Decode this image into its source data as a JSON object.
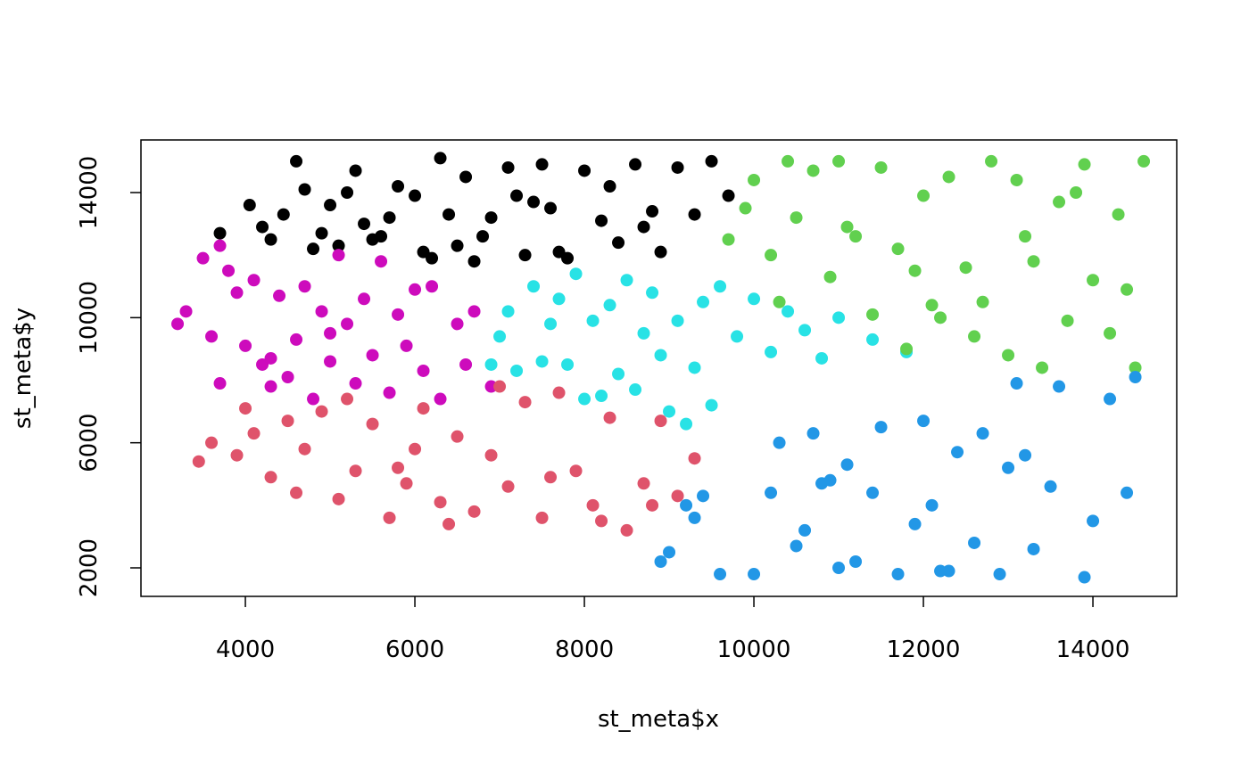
{
  "chart_data": {
    "type": "scatter",
    "xlabel": "st_meta$x",
    "ylabel": "st_meta$y",
    "xlim": [
      2768,
      14989
    ],
    "ylim": [
      1088,
      15682
    ],
    "xticks": [
      4000,
      6000,
      8000,
      10000,
      12000,
      14000
    ],
    "yticks": [
      2000,
      6000,
      10000,
      14000
    ],
    "series": [
      {
        "color": "#000000",
        "x": [
          3700,
          4050,
          4300,
          4450,
          4600,
          4700,
          4900,
          5000,
          5100,
          5300,
          5400,
          5600,
          5800,
          6000,
          6100,
          6300,
          6400,
          6600,
          6700,
          6900,
          7100,
          7300,
          7500,
          7600,
          7800,
          8000,
          8200,
          8400,
          8600,
          8800,
          8900,
          9100,
          9300,
          9500,
          9700,
          4200,
          4800,
          5200,
          5700,
          6200,
          6800,
          7200,
          7700,
          8300,
          8700,
          5500,
          6500,
          7400
        ],
        "y": [
          12700,
          13600,
          12500,
          13300,
          15000,
          14100,
          12700,
          13600,
          12300,
          14700,
          13000,
          12600,
          14200,
          13900,
          12100,
          15100,
          13300,
          14500,
          11800,
          13200,
          14800,
          12000,
          14900,
          13500,
          11900,
          14700,
          13100,
          12400,
          14900,
          13400,
          12100,
          14800,
          13300,
          15000,
          13900,
          12900,
          12200,
          14000,
          13200,
          11900,
          12600,
          13900,
          12100,
          14200,
          12900,
          12500,
          12300,
          13700
        ]
      },
      {
        "color": "#cd0bbc",
        "x": [
          3200,
          3300,
          3500,
          3600,
          3700,
          3800,
          3900,
          4000,
          4100,
          4200,
          4300,
          4400,
          4500,
          4600,
          4700,
          4800,
          4900,
          5000,
          5100,
          5200,
          5300,
          5400,
          5500,
          5600,
          5700,
          5800,
          5900,
          6000,
          6100,
          6200,
          6300,
          6500,
          6600,
          6700,
          6900,
          3700,
          4300,
          5000
        ],
        "y": [
          9800,
          10200,
          11900,
          9400,
          7900,
          11500,
          10800,
          9100,
          11200,
          8500,
          7800,
          10700,
          8100,
          9300,
          11000,
          7400,
          10200,
          8600,
          12000,
          9800,
          7900,
          10600,
          8800,
          11800,
          7600,
          10100,
          9100,
          10900,
          8300,
          11000,
          7400,
          9800,
          8500,
          10200,
          7800,
          12300,
          8700,
          9500
        ]
      },
      {
        "color": "#df536b",
        "x": [
          3450,
          3600,
          3900,
          4100,
          4300,
          4500,
          4700,
          4900,
          5100,
          5300,
          5500,
          5700,
          5900,
          6100,
          6300,
          6500,
          6700,
          6900,
          7100,
          7300,
          7500,
          7700,
          7900,
          8100,
          8300,
          8500,
          8700,
          8900,
          9100,
          9300,
          4000,
          4600,
          5200,
          5800,
          6400,
          7000,
          7600,
          8200,
          8800,
          6000
        ],
        "y": [
          5400,
          6000,
          5600,
          6300,
          4900,
          6700,
          5800,
          7000,
          4200,
          5100,
          6600,
          3600,
          4700,
          7100,
          4100,
          6200,
          3800,
          5600,
          4600,
          7300,
          3600,
          7600,
          5100,
          4000,
          6800,
          3200,
          4700,
          6700,
          4300,
          5500,
          7100,
          4400,
          7400,
          5200,
          3400,
          7800,
          4900,
          3500,
          4000,
          5800
        ]
      },
      {
        "color": "#28e2e5",
        "x": [
          6900,
          7000,
          7100,
          7200,
          7400,
          7500,
          7600,
          7700,
          7800,
          7900,
          8000,
          8100,
          8200,
          8300,
          8400,
          8500,
          8600,
          8700,
          8800,
          8900,
          9000,
          9100,
          9200,
          9300,
          9400,
          9500,
          9600,
          9800,
          10000,
          10200,
          10400,
          10600,
          10800,
          11000,
          11400,
          11800
        ],
        "y": [
          8500,
          9400,
          10200,
          8300,
          11000,
          8600,
          9800,
          10600,
          8500,
          11400,
          7400,
          9900,
          7500,
          10400,
          8200,
          11200,
          7700,
          9500,
          10800,
          8800,
          7000,
          9900,
          6600,
          8400,
          10500,
          7200,
          11000,
          9400,
          10600,
          8900,
          10200,
          9600,
          8700,
          10000,
          9300,
          8900
        ]
      },
      {
        "color": "#61d04f",
        "x": [
          9700,
          9900,
          10000,
          10200,
          10400,
          10500,
          10700,
          10900,
          11000,
          11200,
          11400,
          11500,
          11700,
          11800,
          12000,
          12200,
          12300,
          12500,
          12700,
          12800,
          13000,
          13100,
          13300,
          13400,
          13600,
          13700,
          13900,
          14000,
          14200,
          14300,
          14500,
          14600,
          10300,
          11100,
          11900,
          12600,
          13200,
          13800,
          14400,
          12100
        ],
        "y": [
          12500,
          13500,
          14400,
          12000,
          15000,
          13200,
          14700,
          11300,
          15000,
          12600,
          10100,
          14800,
          12200,
          9000,
          13900,
          10000,
          14500,
          11600,
          10500,
          15000,
          8800,
          14400,
          11800,
          8400,
          13700,
          9900,
          14900,
          11200,
          9500,
          13300,
          8400,
          15000,
          10500,
          12900,
          11500,
          9400,
          12600,
          14000,
          10900,
          10400
        ]
      },
      {
        "color": "#2297e6",
        "x": [
          8900,
          9000,
          9200,
          9300,
          9400,
          9600,
          10000,
          10200,
          10300,
          10500,
          10600,
          10700,
          10900,
          11000,
          11100,
          11200,
          11400,
          11500,
          11700,
          11900,
          12000,
          12100,
          12300,
          12400,
          12600,
          12700,
          12900,
          13100,
          13200,
          13300,
          13500,
          13600,
          13900,
          14000,
          14200,
          14400,
          14500,
          10800,
          12200,
          13000
        ],
        "y": [
          2200,
          2500,
          4000,
          3600,
          4300,
          1800,
          1800,
          4400,
          6000,
          2700,
          3200,
          6300,
          4800,
          2000,
          5300,
          2200,
          4400,
          6500,
          1800,
          3400,
          6700,
          4000,
          1900,
          5700,
          2800,
          6300,
          1800,
          7900,
          5600,
          2600,
          4600,
          7800,
          1700,
          3500,
          7400,
          4400,
          8100,
          4700,
          1900,
          5200
        ]
      }
    ]
  }
}
